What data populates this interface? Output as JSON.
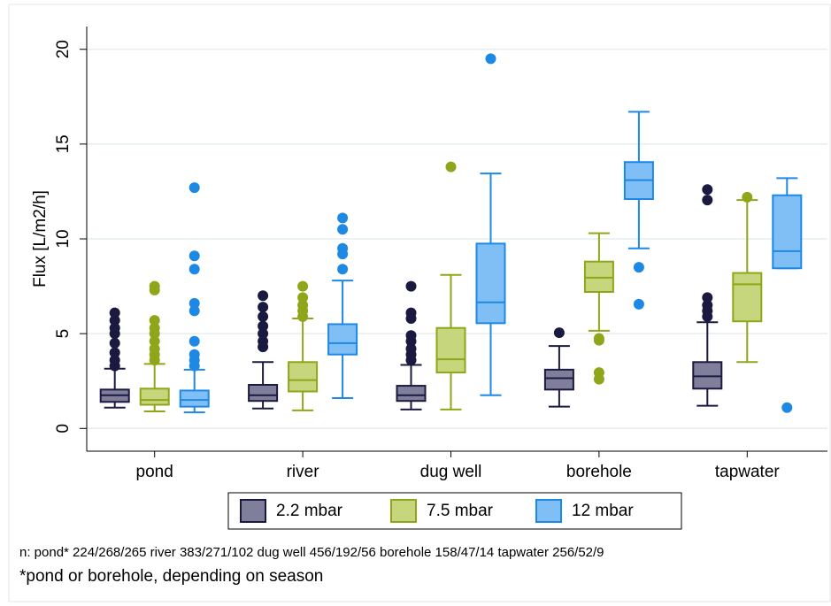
{
  "chart_data": {
    "type": "box",
    "y_label": "Flux [L/m2/h]",
    "categories": [
      "pond",
      "river",
      "dug well",
      "borehole",
      "tapwater"
    ],
    "ylim": [
      -1.2,
      21.2
    ],
    "yticks": [
      0,
      5,
      10,
      15,
      20
    ],
    "grid": true,
    "legend_position": "bottom",
    "series": [
      {
        "name": "2.2 mbar",
        "color": "#1a1a40",
        "fill": "#7f7f9c",
        "boxes": [
          {
            "low": 1.1,
            "q1": 1.4,
            "median": 1.75,
            "q3": 2.05,
            "high": 3.15,
            "outliers": [
              3.3,
              3.6,
              4.0,
              4.5,
              5.0,
              5.3,
              5.7,
              6.1
            ]
          },
          {
            "low": 1.05,
            "q1": 1.45,
            "median": 1.75,
            "q3": 2.3,
            "high": 3.5,
            "outliers": [
              4.3,
              4.6,
              5.0,
              5.4,
              5.9,
              6.4,
              7.0
            ]
          },
          {
            "low": 1.0,
            "q1": 1.45,
            "median": 1.75,
            "q3": 2.25,
            "high": 3.35,
            "outliers": [
              3.6,
              3.9,
              4.2,
              4.6,
              4.9,
              5.8,
              6.1,
              7.5
            ]
          },
          {
            "low": 1.15,
            "q1": 2.05,
            "median": 2.65,
            "q3": 3.1,
            "high": 4.35,
            "outliers": [
              5.05
            ]
          },
          {
            "low": 1.2,
            "q1": 2.1,
            "median": 2.75,
            "q3": 3.5,
            "high": 5.6,
            "outliers": [
              5.9,
              6.2,
              6.5,
              6.9,
              12.05,
              12.6
            ]
          }
        ]
      },
      {
        "name": "7.5 mbar",
        "color": "#8fa61a",
        "fill": "#c6d67c",
        "boxes": [
          {
            "low": 0.9,
            "q1": 1.25,
            "median": 1.5,
            "q3": 2.1,
            "high": 3.4,
            "outliers": [
              3.6,
              3.9,
              4.2,
              4.6,
              5.0,
              5.3,
              5.7,
              7.3,
              7.5
            ]
          },
          {
            "low": 0.95,
            "q1": 1.95,
            "median": 2.55,
            "q3": 3.5,
            "high": 5.8,
            "outliers": [
              5.9,
              6.2,
              6.5,
              6.9,
              7.5
            ]
          },
          {
            "low": 1.0,
            "q1": 2.95,
            "median": 3.65,
            "q3": 5.3,
            "high": 8.1,
            "outliers": [
              13.8
            ]
          },
          {
            "low": 5.15,
            "q1": 7.2,
            "median": 7.95,
            "q3": 8.8,
            "high": 10.3,
            "outliers": [
              2.6,
              2.95,
              4.65,
              4.75
            ]
          },
          {
            "low": 3.5,
            "q1": 5.65,
            "median": 7.6,
            "q3": 8.2,
            "high": 12.05,
            "outliers": [
              12.2
            ]
          }
        ]
      },
      {
        "name": "12 mbar",
        "color": "#1e88e5",
        "fill": "#80bff5",
        "boxes": [
          {
            "low": 0.85,
            "q1": 1.15,
            "median": 1.5,
            "q3": 2.0,
            "high": 3.1,
            "outliers": [
              3.3,
              3.6,
              3.9,
              4.6,
              6.2,
              6.6,
              8.4,
              9.1,
              12.7
            ]
          },
          {
            "low": 1.6,
            "q1": 3.9,
            "median": 4.5,
            "q3": 5.5,
            "high": 7.8,
            "outliers": [
              8.4,
              9.2,
              9.5,
              10.5,
              11.1
            ]
          },
          {
            "low": 1.75,
            "q1": 5.55,
            "median": 6.65,
            "q3": 9.75,
            "high": 13.45,
            "outliers": [
              19.5
            ]
          },
          {
            "low": 9.5,
            "q1": 12.1,
            "median": 13.1,
            "q3": 14.05,
            "high": 16.7,
            "outliers": [
              6.55,
              8.5
            ]
          },
          {
            "low": 8.45,
            "q1": 8.45,
            "median": 9.35,
            "q3": 12.3,
            "high": 13.2,
            "outliers": [
              1.1
            ]
          }
        ]
      }
    ],
    "notes": [
      "n: pond* 224/268/265 river 383/271/102 dug well 456/192/56 borehole 158/47/14 tapwater 256/52/9",
      "*pond or borehole, depending on season"
    ]
  }
}
